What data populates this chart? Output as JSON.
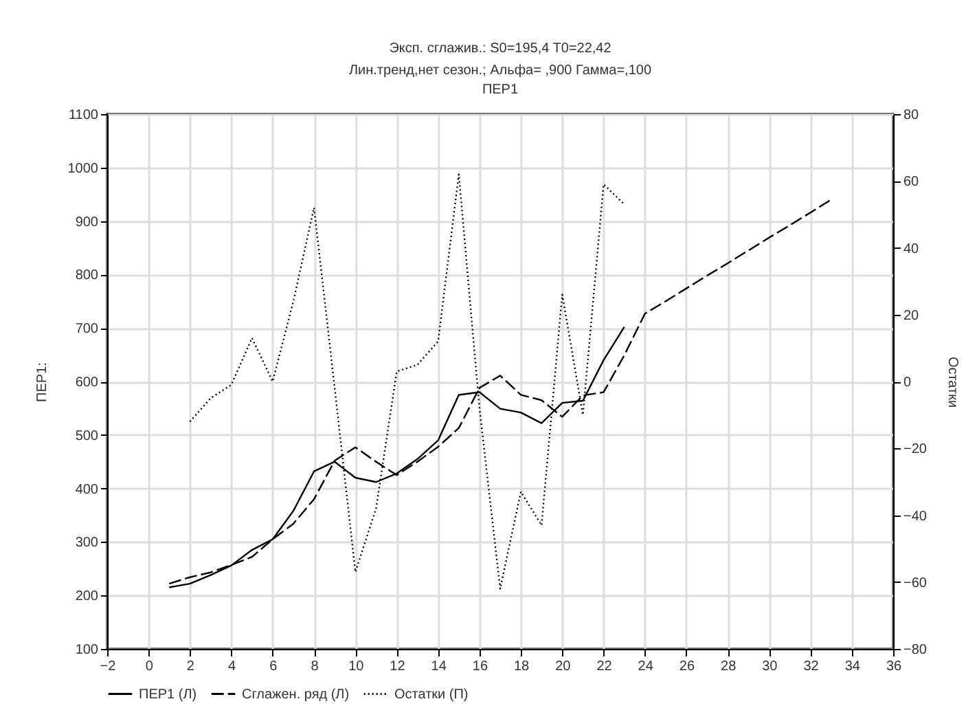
{
  "chart_data": {
    "type": "line",
    "title": "Эксп. сглажив.: S0=195,4 T0=22,42\nЛин.тренд,нет сезон.; Альфа= ,900 Гамма=,100",
    "subtitle": "ПЕР1",
    "ylabel": "ПЕР1:",
    "y2label": "Остатки",
    "xlim": [
      -2,
      36
    ],
    "xticks": [
      -2,
      0,
      2,
      4,
      6,
      8,
      10,
      12,
      14,
      16,
      18,
      20,
      22,
      24,
      26,
      28,
      30,
      32,
      34,
      36
    ],
    "ylim": [
      100,
      1100
    ],
    "yticks": [
      100,
      200,
      300,
      400,
      500,
      600,
      700,
      800,
      900,
      1000,
      1100
    ],
    "y2lim": [
      -80,
      80
    ],
    "y2ticks": [
      -80,
      -60,
      -40,
      -20,
      0,
      20,
      40,
      60,
      80
    ],
    "grid": true,
    "legend": "bottom",
    "marker": "none",
    "series": [
      {
        "name": "ПЕР1 (Л)",
        "color": "#000000",
        "line_style": "solid",
        "x": [
          1,
          2,
          3,
          4,
          5,
          6,
          7,
          8,
          9,
          10,
          11,
          12,
          13,
          14,
          15,
          16,
          17,
          18,
          19,
          20,
          21,
          22,
          23
        ],
        "values": [
          215,
          222,
          238,
          256,
          285,
          305,
          358,
          432,
          450,
          420,
          412,
          428,
          455,
          490,
          575,
          580,
          549,
          542,
          522,
          560,
          564,
          640,
          702
        ]
      },
      {
        "name": "Сглажен. ряд (Л)",
        "color": "#000000",
        "line_style": "dashed",
        "x": [
          1,
          2,
          3,
          4,
          5,
          6,
          7,
          8,
          9,
          10,
          11,
          12,
          13,
          14,
          15,
          16,
          17,
          18,
          19,
          20,
          21,
          22,
          23,
          24,
          25,
          26,
          27,
          28,
          29,
          30,
          31,
          32,
          33
        ],
        "values": [
          222,
          234,
          243,
          257,
          272,
          305,
          334,
          380,
          452,
          477,
          450,
          425,
          450,
          478,
          513,
          588,
          611,
          575,
          565,
          534,
          574,
          580,
          649,
          727,
          750,
          774,
          798,
          821,
          845,
          869,
          892,
          916,
          940
        ]
      },
      {
        "name": "Остатки (П)",
        "color": "#000000",
        "line_style": "dotted",
        "axis": "y2",
        "x": [
          2,
          3,
          4,
          5,
          6,
          7,
          8,
          9,
          10,
          11,
          12,
          13,
          14,
          15,
          16,
          17,
          18,
          19,
          20,
          21,
          22,
          23
        ],
        "values": [
          -12,
          -5,
          -1,
          13,
          0,
          24,
          52,
          -2,
          -57,
          -38,
          3,
          5,
          12,
          62,
          -8,
          -62,
          -33,
          -43,
          26,
          -10,
          59,
          53
        ]
      }
    ]
  }
}
